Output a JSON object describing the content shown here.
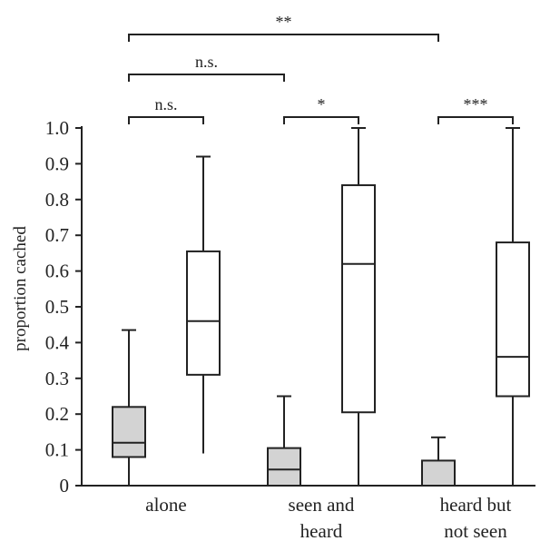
{
  "chart_data": {
    "type": "boxplot",
    "ylabel": "proportion cached",
    "xlabel": "",
    "ylim": [
      0,
      1.0
    ],
    "yticks": [
      "0",
      "0.1",
      "0.2",
      "0.3",
      "0.4",
      "0.5",
      "0.6",
      "0.7",
      "0.8",
      "0.9",
      "1.0"
    ],
    "categories": [
      {
        "lines": [
          "alone"
        ]
      },
      {
        "lines": [
          "seen and",
          "heard"
        ]
      },
      {
        "lines": [
          "heard but",
          "not seen"
        ]
      }
    ],
    "boxes": [
      {
        "group": 0,
        "fill": "#d3d3d3",
        "whisker_low": 0,
        "q1": 0.08,
        "median": 0.12,
        "q3": 0.22,
        "whisker_high": 0.435
      },
      {
        "group": 0,
        "fill": "#ffffff",
        "whisker_low": 0.09,
        "q1": 0.31,
        "median": 0.46,
        "q3": 0.655,
        "whisker_high": 0.92
      },
      {
        "group": 1,
        "fill": "#d3d3d3",
        "whisker_low": 0,
        "q1": 0,
        "median": 0.045,
        "q3": 0.105,
        "whisker_high": 0.25
      },
      {
        "group": 1,
        "fill": "#ffffff",
        "whisker_low": 0,
        "q1": 0.205,
        "median": 0.62,
        "q3": 0.84,
        "whisker_high": 1.0
      },
      {
        "group": 2,
        "fill": "#d3d3d3",
        "whisker_low": 0,
        "q1": 0,
        "median": 0,
        "q3": 0.07,
        "whisker_high": 0.135
      },
      {
        "group": 2,
        "fill": "#ffffff",
        "whisker_low": 0,
        "q1": 0.25,
        "median": 0.36,
        "q3": 0.68,
        "whisker_high": 1.0
      }
    ],
    "significance": [
      {
        "from_box": 0,
        "to_box": 1,
        "label": "n.s."
      },
      {
        "from_box": 2,
        "to_box": 3,
        "label": "*"
      },
      {
        "from_box": 4,
        "to_box": 5,
        "label": "***"
      },
      {
        "from_box": 0,
        "to_box": 2,
        "label": "n.s."
      },
      {
        "from_box": 0,
        "to_box": 4,
        "label": "**"
      }
    ],
    "colors": {
      "axis": "#222222",
      "control_fill": "#d3d3d3",
      "treatment_fill": "#ffffff"
    }
  }
}
